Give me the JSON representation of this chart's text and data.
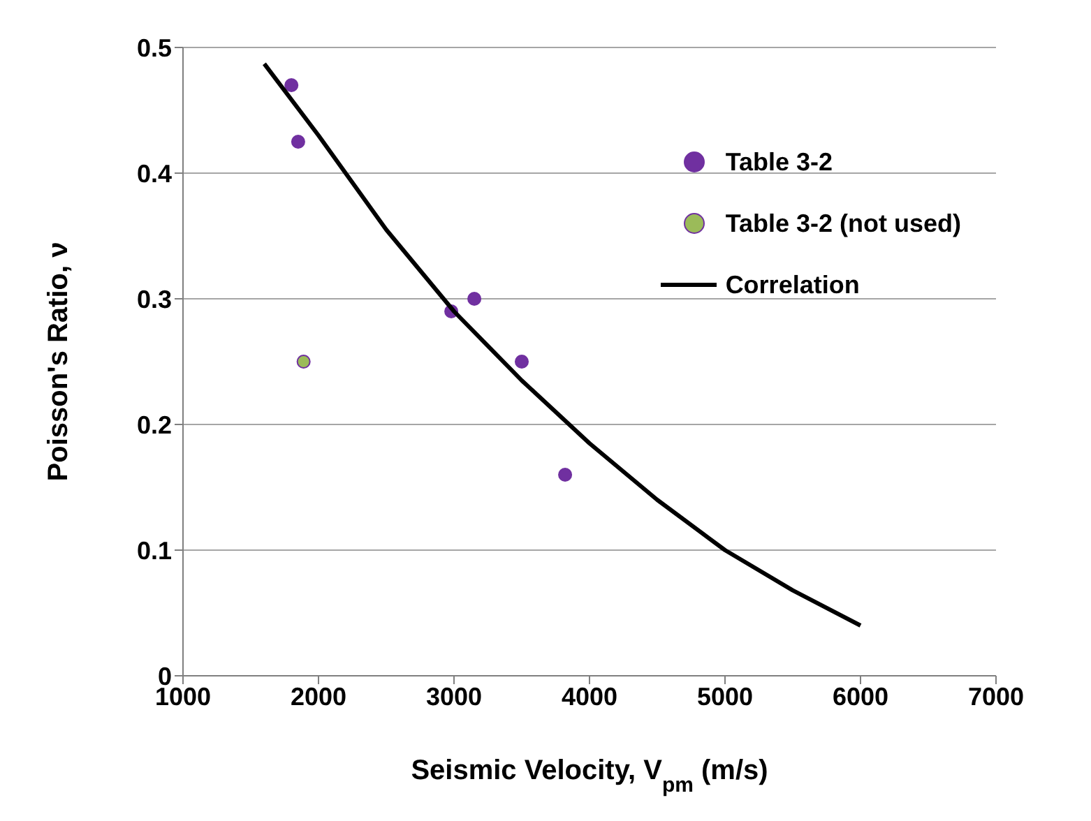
{
  "chart_data": {
    "type": "scatter",
    "xlabel": "Seismic Velocity, V$_{pm}$ (m/s)",
    "ylabel": "Poisson's Ratio, ν",
    "xlim": [
      1000,
      7000
    ],
    "xticks": [
      1000,
      2000,
      3000,
      4000,
      5000,
      6000,
      7000
    ],
    "ylim": [
      0,
      0.5
    ],
    "yticks": [
      0,
      0.1,
      0.2,
      0.3,
      0.4,
      0.5
    ],
    "grid": "y",
    "legend": "right",
    "series": [
      {
        "name": "Table 3-2",
        "type": "scatter",
        "marker": "circle",
        "color": "#7030a0",
        "x": [
          1800,
          1850,
          2980,
          3150,
          3500,
          3820
        ],
        "values": [
          0.47,
          0.425,
          0.29,
          0.3,
          0.25,
          0.16
        ]
      },
      {
        "name": "Table 3-2 (not used)",
        "type": "scatter",
        "marker": "circle",
        "color": "#9bbb59",
        "x": [
          1890
        ],
        "values": [
          0.25
        ]
      },
      {
        "name": "Correlation",
        "type": "line",
        "marker": "none",
        "line_style": "solid",
        "color": "#000000",
        "x": [
          1600,
          2000,
          2500,
          3000,
          3500,
          4000,
          4500,
          5000,
          5500,
          6000
        ],
        "values": [
          0.487,
          0.43,
          0.355,
          0.29,
          0.235,
          0.185,
          0.14,
          0.1,
          0.068,
          0.04
        ]
      }
    ]
  }
}
